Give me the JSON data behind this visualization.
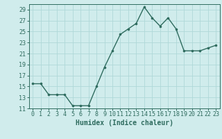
{
  "x": [
    0,
    1,
    2,
    3,
    4,
    5,
    6,
    7,
    8,
    9,
    10,
    11,
    12,
    13,
    14,
    15,
    16,
    17,
    18,
    19,
    20,
    21,
    22,
    23
  ],
  "y": [
    15.5,
    15.5,
    13.5,
    13.5,
    13.5,
    11.5,
    11.5,
    11.5,
    15.0,
    18.5,
    21.5,
    24.5,
    25.5,
    26.5,
    29.5,
    27.5,
    26.0,
    27.5,
    25.5,
    21.5,
    21.5,
    21.5,
    22.0,
    22.5
  ],
  "xlabel": "Humidex (Indice chaleur)",
  "ylim": [
    11,
    30
  ],
  "xlim": [
    -0.5,
    23.5
  ],
  "yticks": [
    11,
    13,
    15,
    17,
    19,
    21,
    23,
    25,
    27,
    29
  ],
  "xticks": [
    0,
    1,
    2,
    3,
    4,
    5,
    6,
    7,
    8,
    9,
    10,
    11,
    12,
    13,
    14,
    15,
    16,
    17,
    18,
    19,
    20,
    21,
    22,
    23
  ],
  "line_color": "#2e6b5e",
  "marker_color": "#2e6b5e",
  "bg_color": "#d0ecec",
  "grid_color": "#afd8d8",
  "xlabel_fontsize": 7,
  "tick_fontsize": 6,
  "marker_size": 2.2,
  "line_width": 1.0
}
